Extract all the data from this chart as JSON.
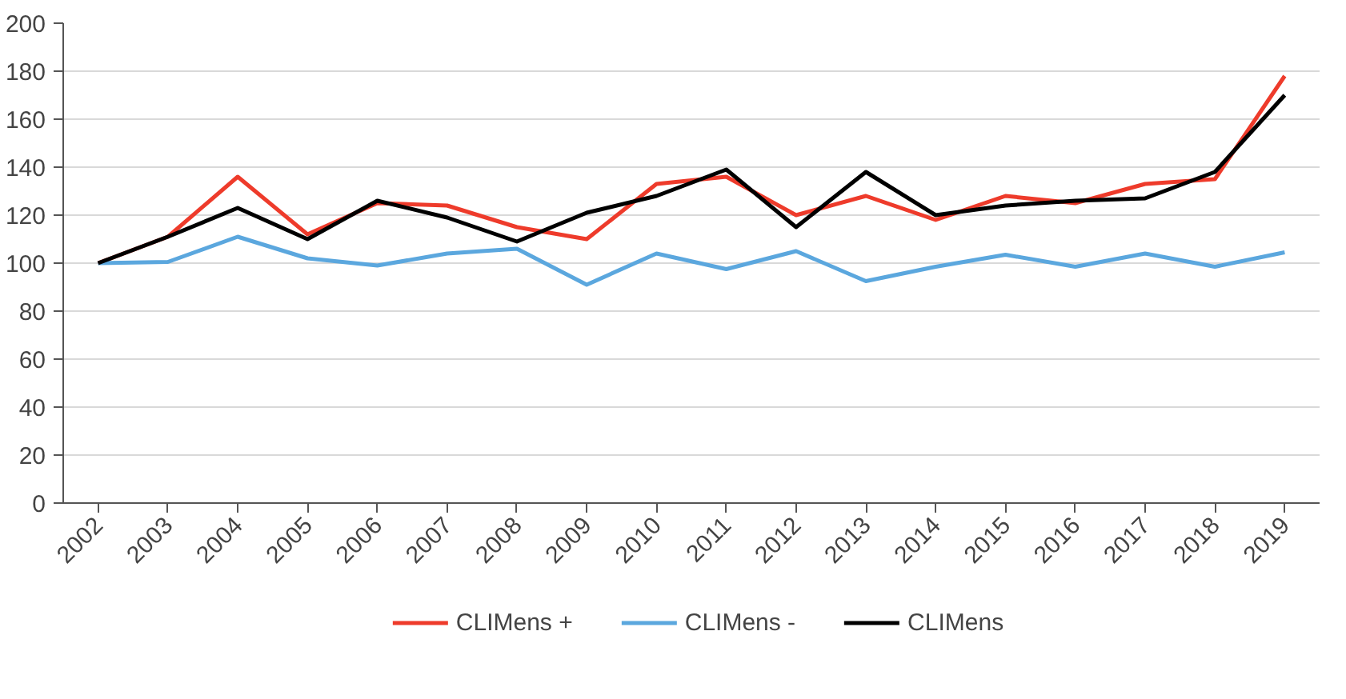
{
  "chart_data": {
    "type": "line",
    "categories": [
      "2002",
      "2003",
      "2004",
      "2005",
      "2006",
      "2007",
      "2008",
      "2009",
      "2010",
      "2011",
      "2012",
      "2013",
      "2014",
      "2015",
      "2016",
      "2017",
      "2018",
      "2019"
    ],
    "series": [
      {
        "name": "CLIMens +",
        "color": "#ee3b2b",
        "values": [
          100,
          111,
          136,
          112,
          125,
          124,
          115,
          110,
          133,
          136,
          120,
          128,
          118,
          128,
          125,
          133,
          135,
          178
        ]
      },
      {
        "name": "CLIMens -",
        "color": "#5ba7de",
        "values": [
          100,
          100.5,
          111,
          102,
          99,
          104,
          106,
          91,
          104,
          97.5,
          105,
          92.5,
          98.5,
          103.5,
          98.5,
          104,
          98.5,
          104.5
        ]
      },
      {
        "name": "CLIMens",
        "color": "#000000",
        "values": [
          100,
          111,
          123,
          110,
          126,
          119,
          109,
          121,
          128,
          139,
          115,
          138,
          120,
          124,
          126,
          127,
          138,
          170
        ]
      }
    ],
    "ylim": [
      0,
      200
    ],
    "yticks": [
      0,
      20,
      40,
      60,
      80,
      100,
      120,
      140,
      160,
      180,
      200
    ],
    "grid": "y",
    "legend": "bottom",
    "marker": "none",
    "line_style": "solid"
  }
}
